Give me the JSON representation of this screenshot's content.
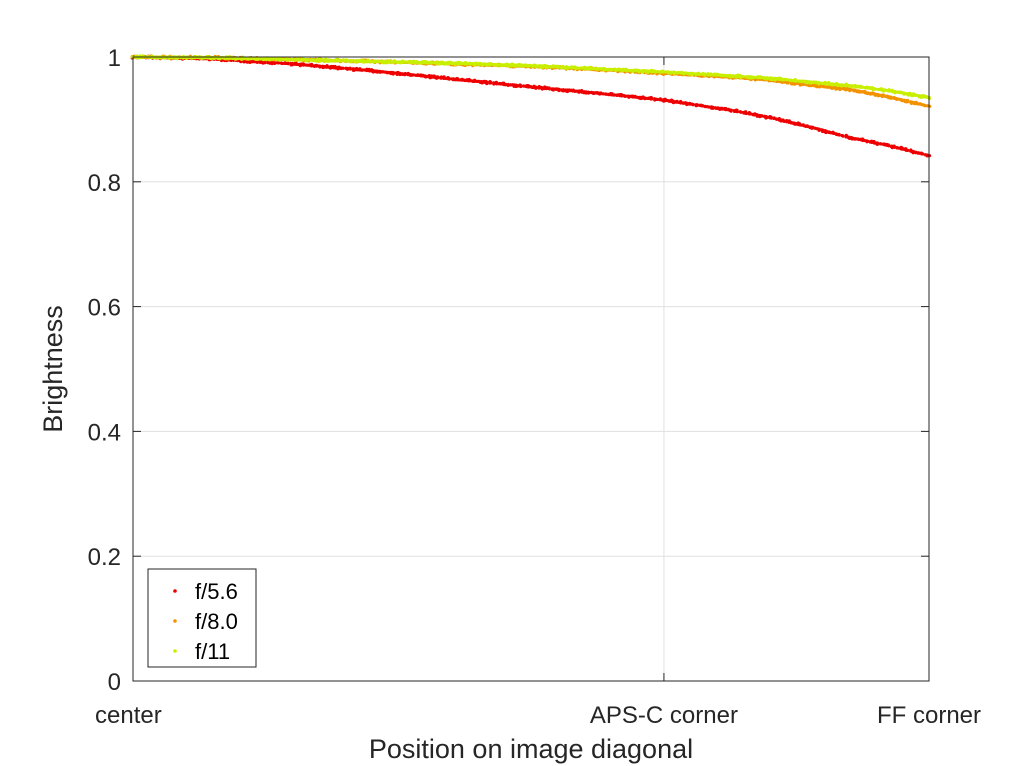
{
  "chart_data": {
    "type": "scatter",
    "title": "",
    "xlabel": "Position on image diagonal",
    "ylabel": "Brightness",
    "xlim": [
      0,
      1
    ],
    "ylim": [
      0,
      1
    ],
    "x_ticks": [
      {
        "value": 0,
        "label": "center"
      },
      {
        "value": 0.667,
        "label": "APS-C corner"
      },
      {
        "value": 1,
        "label": "FF corner"
      }
    ],
    "y_ticks": [
      {
        "value": 0,
        "label": "0"
      },
      {
        "value": 0.2,
        "label": "0.2"
      },
      {
        "value": 0.4,
        "label": "0.4"
      },
      {
        "value": 0.6,
        "label": "0.6"
      },
      {
        "value": 0.8,
        "label": "0.8"
      },
      {
        "value": 1,
        "label": "1"
      }
    ],
    "grid": true,
    "legend_position": "bottom-left",
    "series": [
      {
        "name": "f/5.6",
        "color": "#ee0000",
        "points": [
          [
            0,
            1.0
          ],
          [
            0.1,
            0.997
          ],
          [
            0.2,
            0.989
          ],
          [
            0.3,
            0.978
          ],
          [
            0.4,
            0.965
          ],
          [
            0.5,
            0.952
          ],
          [
            0.6,
            0.94
          ],
          [
            0.667,
            0.931
          ],
          [
            0.75,
            0.915
          ],
          [
            0.8,
            0.903
          ],
          [
            0.85,
            0.888
          ],
          [
            0.9,
            0.871
          ],
          [
            0.95,
            0.858
          ],
          [
            1.0,
            0.842
          ]
        ]
      },
      {
        "name": "f/8.0",
        "color": "#f39200",
        "points": [
          [
            0,
            1.0
          ],
          [
            0.1,
            0.999
          ],
          [
            0.2,
            0.996
          ],
          [
            0.3,
            0.993
          ],
          [
            0.4,
            0.989
          ],
          [
            0.5,
            0.985
          ],
          [
            0.6,
            0.979
          ],
          [
            0.667,
            0.974
          ],
          [
            0.75,
            0.968
          ],
          [
            0.8,
            0.963
          ],
          [
            0.85,
            0.955
          ],
          [
            0.9,
            0.948
          ],
          [
            0.95,
            0.936
          ],
          [
            1.0,
            0.921
          ]
        ]
      },
      {
        "name": "f/11",
        "color": "#c8ef00",
        "points": [
          [
            0,
            1.0
          ],
          [
            0.1,
            0.999
          ],
          [
            0.2,
            0.996
          ],
          [
            0.3,
            0.993
          ],
          [
            0.4,
            0.99
          ],
          [
            0.5,
            0.986
          ],
          [
            0.6,
            0.98
          ],
          [
            0.667,
            0.976
          ],
          [
            0.75,
            0.97
          ],
          [
            0.8,
            0.966
          ],
          [
            0.85,
            0.96
          ],
          [
            0.9,
            0.954
          ],
          [
            0.95,
            0.946
          ],
          [
            1.0,
            0.935
          ]
        ]
      }
    ]
  }
}
